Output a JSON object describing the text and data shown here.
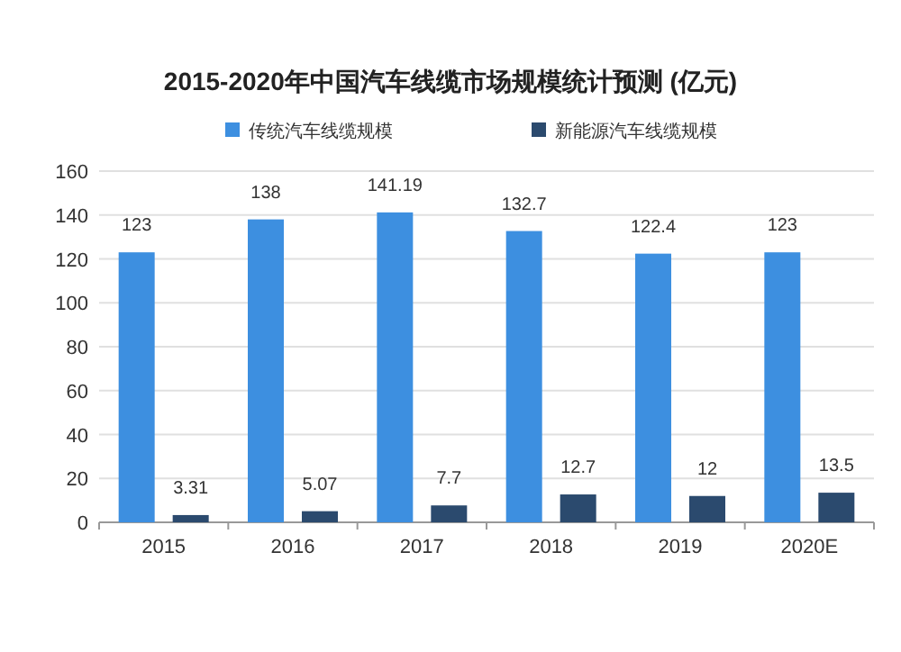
{
  "chart_data": {
    "type": "bar",
    "title": "2015-2020年中国汽车线缆市场规模统计预测 (亿元)",
    "categories": [
      "2015",
      "2016",
      "2017",
      "2018",
      "2019",
      "2020E"
    ],
    "series": [
      {
        "name": "传统汽车线缆规模",
        "color": "#3d8fe0",
        "values": [
          123,
          138,
          141.19,
          132.7,
          122.4,
          123
        ]
      },
      {
        "name": "新能源汽车线缆规模",
        "color": "#2b4a6e",
        "values": [
          3.31,
          5.07,
          7.7,
          12.7,
          12,
          13.5
        ]
      }
    ],
    "ylim": [
      0,
      160
    ],
    "yticks": [
      0,
      20,
      40,
      60,
      80,
      100,
      120,
      140,
      160
    ],
    "grid": "y",
    "legend": "top",
    "data_labels": true
  }
}
